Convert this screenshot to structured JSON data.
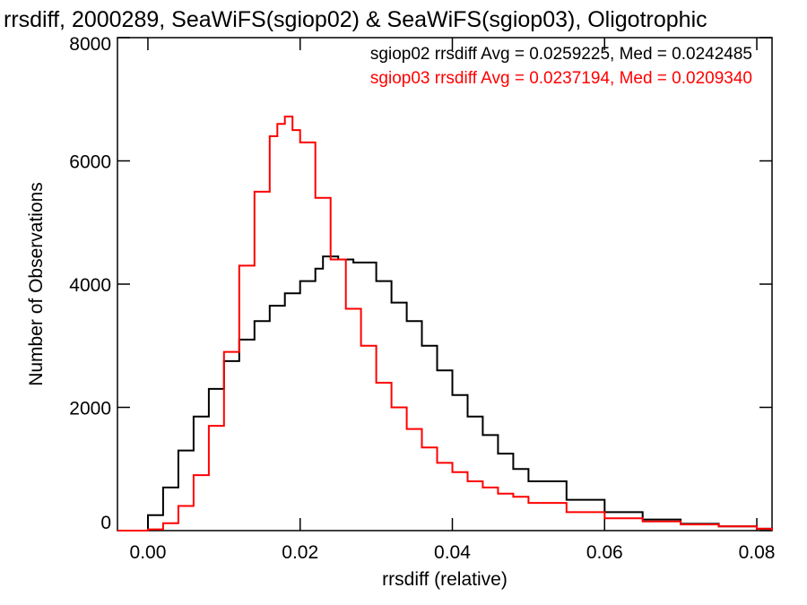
{
  "chart_data": {
    "type": "line",
    "title": "rrsdiff, 2000289, SeaWiFS(sgiop02) & SeaWiFS(sgiop03), Oligotrophic",
    "xlabel": "rrsdiff (relative)",
    "ylabel": "Number of Observations",
    "xlim": [
      -0.004,
      0.082
    ],
    "ylim": [
      0,
      8000
    ],
    "x_ticks": [
      0.0,
      0.02,
      0.04,
      0.06,
      0.08
    ],
    "x_tick_labels": [
      "0.00",
      "0.02",
      "0.04",
      "0.06",
      "0.08"
    ],
    "y_ticks": [
      0,
      2000,
      4000,
      6000,
      8000
    ],
    "y_tick_labels": [
      "0",
      "2000",
      "4000",
      "6000",
      "8000"
    ],
    "grid": false,
    "legend_position": "top-right",
    "series": [
      {
        "name": "sgiop02 rrsdiff Avg = 0.0259225, Med = 0.0242485",
        "color": "#000000",
        "step": true,
        "x": [
          -0.004,
          -0.0005,
          0.0,
          0.002,
          0.004,
          0.006,
          0.008,
          0.01,
          0.012,
          0.014,
          0.016,
          0.018,
          0.02,
          0.022,
          0.023,
          0.025,
          0.027,
          0.03,
          0.032,
          0.034,
          0.036,
          0.038,
          0.04,
          0.042,
          0.044,
          0.046,
          0.048,
          0.05,
          0.055,
          0.06,
          0.065,
          0.07,
          0.075,
          0.08,
          0.082
        ],
        "y": [
          0,
          0,
          250,
          700,
          1300,
          1850,
          2300,
          2750,
          3100,
          3400,
          3650,
          3850,
          4050,
          4250,
          4450,
          4400,
          4350,
          4050,
          3700,
          3400,
          3000,
          2600,
          2200,
          1850,
          1550,
          1250,
          1000,
          800,
          500,
          300,
          180,
          110,
          70,
          30,
          0
        ]
      },
      {
        "name": "sgiop03 rrsdiff Avg = 0.0237194, Med = 0.0209340",
        "color": "#ff0000",
        "step": true,
        "x": [
          -0.004,
          -0.0005,
          0.0,
          0.002,
          0.004,
          0.006,
          0.008,
          0.01,
          0.012,
          0.014,
          0.016,
          0.017,
          0.018,
          0.019,
          0.02,
          0.022,
          0.024,
          0.026,
          0.028,
          0.03,
          0.032,
          0.034,
          0.036,
          0.038,
          0.04,
          0.042,
          0.044,
          0.046,
          0.048,
          0.05,
          0.055,
          0.06,
          0.065,
          0.07,
          0.075,
          0.08,
          0.082
        ],
        "y": [
          0,
          0,
          20,
          120,
          400,
          900,
          1700,
          2900,
          4300,
          5500,
          6400,
          6600,
          6720,
          6500,
          6300,
          5400,
          4400,
          3600,
          3000,
          2400,
          2000,
          1650,
          1350,
          1100,
          950,
          800,
          700,
          600,
          550,
          450,
          300,
          200,
          150,
          100,
          70,
          30,
          0
        ]
      }
    ]
  }
}
